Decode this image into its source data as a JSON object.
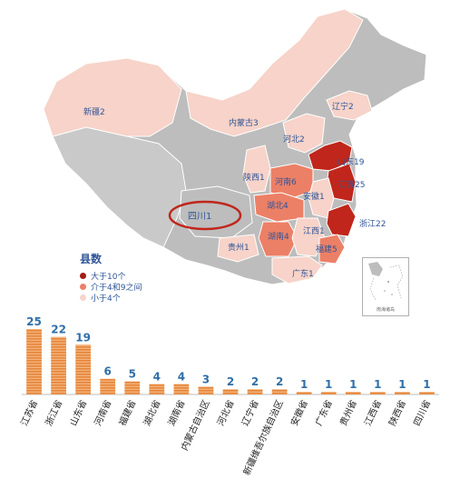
{
  "map": {
    "labels": {
      "xinjiang": "新疆2",
      "neimenggu": "内蒙古3",
      "liaoning": "辽宁2",
      "hebei": "河北2",
      "shandong": "山东19",
      "shaanxi": "陕西1",
      "henan": "河南6",
      "anhui": "安徽1",
      "jiangsu": "江苏25",
      "sichuan": "四川1",
      "hubei": "湖北4",
      "zhejiang": "浙江22",
      "jiangxi": "江西1",
      "hunan": "湖南4",
      "guizhou": "贵州1",
      "fujian": "福建5",
      "guangdong": "广东1"
    },
    "inset_label": "南海诸岛",
    "colors": {
      "high": "#c0261b",
      "mid": "#ec8066",
      "low": "#f7d3c9",
      "none": "#bdbdbd",
      "highlight_ring": "#c0261b"
    }
  },
  "legend": {
    "title": "县数",
    "items": [
      {
        "label": "大于10个",
        "color": "#a31c14"
      },
      {
        "label": "介于4和9之间",
        "color": "#ec8066"
      },
      {
        "label": "小于4个",
        "color": "#f7d3c9"
      }
    ]
  },
  "chart_data": {
    "type": "bar",
    "categories": [
      "江苏省",
      "浙江省",
      "山东省",
      "河南省",
      "福建省",
      "湖北省",
      "湖南省",
      "内蒙古自治区",
      "河北省",
      "辽宁省",
      "新疆维吾尔族自治区",
      "安徽省",
      "广东省",
      "贵州省",
      "江西省",
      "陕西省",
      "四川省"
    ],
    "values": [
      25,
      22,
      19,
      6,
      5,
      4,
      4,
      3,
      2,
      2,
      2,
      1,
      1,
      1,
      1,
      1,
      1
    ],
    "title": "",
    "xlabel": "",
    "ylabel": "",
    "ylim": [
      0,
      25
    ],
    "bar_color": "#e6863a",
    "value_color": "#2f6fa8"
  }
}
